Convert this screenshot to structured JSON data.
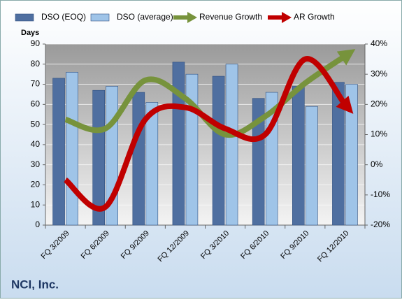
{
  "chart_data": {
    "type": "bar",
    "title": "NCI, Inc.",
    "y_label": "Days",
    "categories": [
      "FQ 3/2009",
      "FQ 6/2009",
      "FQ 9/2009",
      "FQ 12/2009",
      "FQ 3/2010",
      "FQ 6/2010",
      "FQ 9/2010",
      "FQ 12/2010"
    ],
    "series": [
      {
        "name": "DSO (EOQ)",
        "color": "#4f6fa0",
        "values": [
          73,
          67,
          66,
          81,
          74,
          63,
          69,
          71
        ]
      },
      {
        "name": "DSO (average)",
        "color": "#9fc4e8",
        "values": [
          76,
          69,
          61,
          75,
          80,
          66,
          59,
          70
        ]
      },
      {
        "name": "Revenue Growth",
        "color": "#77933c",
        "type": "line",
        "axis": "y2",
        "values": [
          15,
          12,
          28,
          22,
          10,
          16,
          27,
          36
        ]
      },
      {
        "name": "AR Growth",
        "color": "#c00000",
        "type": "line",
        "axis": "y2",
        "values": [
          -5,
          -14,
          15,
          19,
          12,
          10,
          35,
          20
        ]
      }
    ],
    "ylim": [
      0,
      90
    ],
    "yticks": [
      0,
      10,
      20,
      30,
      40,
      50,
      60,
      70,
      80,
      90
    ],
    "y2lim": [
      -20,
      40
    ],
    "y2ticks": [
      {
        "value": -20,
        "label": "-20%"
      },
      {
        "value": -10,
        "label": "-10%"
      },
      {
        "value": 0,
        "label": "0%"
      },
      {
        "value": 10,
        "label": "10%"
      },
      {
        "value": 20,
        "label": "20%"
      },
      {
        "value": 30,
        "label": "30%"
      },
      {
        "value": 40,
        "label": "40%"
      }
    ],
    "grid": true,
    "legend": "top"
  }
}
